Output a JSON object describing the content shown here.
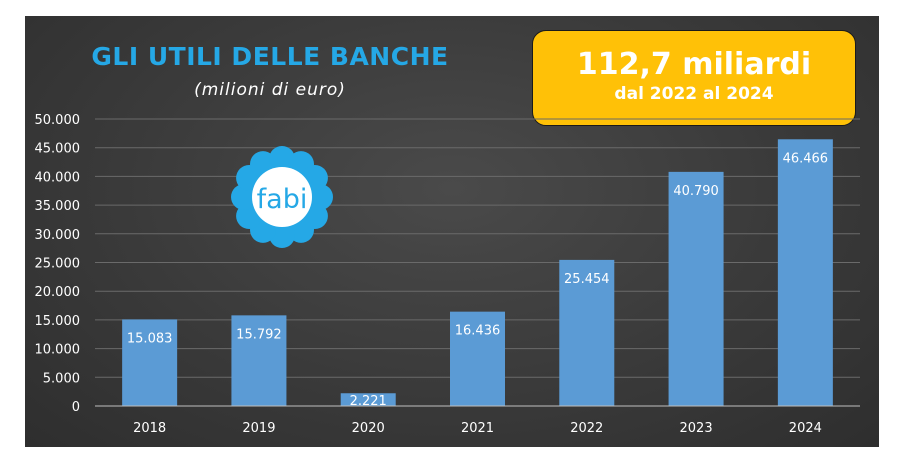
{
  "header": {
    "title": "GLI UTILI DELLE BANCHE",
    "subtitle": "(milioni di euro)"
  },
  "callout": {
    "main": "112,7 miliardi",
    "sub": "dal 2022 al 2024"
  },
  "logo": {
    "text": "fabi",
    "icon": "fabi-flower-logo",
    "color": "#25a8e6"
  },
  "colors": {
    "bar": "#5b9bd5",
    "callout": "#ffc107",
    "title": "#25a8e6"
  },
  "chart_data": {
    "type": "bar",
    "title": "GLI UTILI DELLE BANCHE",
    "subtitle": "(milioni di euro)",
    "xlabel": "",
    "ylabel": "",
    "categories": [
      "2018",
      "2019",
      "2020",
      "2021",
      "2022",
      "2023",
      "2024"
    ],
    "values": [
      15083,
      15792,
      2221,
      16436,
      25454,
      40790,
      46466
    ],
    "value_labels": [
      "15.083",
      "15.792",
      "2.221",
      "16.436",
      "25.454",
      "40.790",
      "46.466"
    ],
    "ylim": [
      0,
      50000
    ],
    "yticks": [
      0,
      5000,
      10000,
      15000,
      20000,
      25000,
      30000,
      35000,
      40000,
      45000,
      50000
    ],
    "ytick_labels": [
      "0",
      "5.000",
      "10.000",
      "15.000",
      "20.000",
      "25.000",
      "30.000",
      "35.000",
      "40.000",
      "45.000",
      "50.000"
    ],
    "grid": true,
    "legend": "none"
  }
}
